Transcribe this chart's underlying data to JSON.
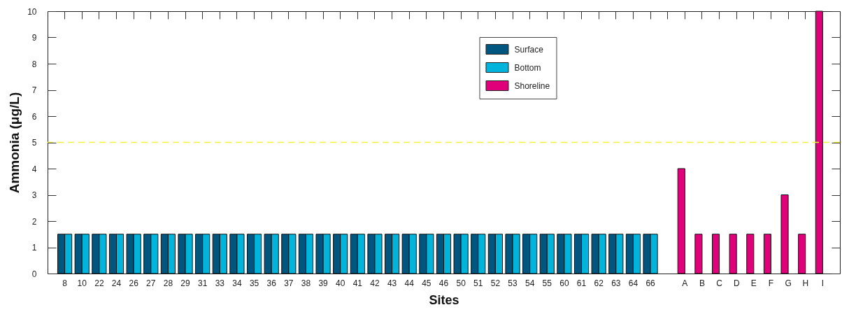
{
  "chart_data": {
    "type": "bar",
    "xlabel": "Sites",
    "ylabel": "Ammonia (μg/L)",
    "categories": [
      "8",
      "10",
      "22",
      "24",
      "26",
      "27",
      "28",
      "29",
      "31",
      "33",
      "34",
      "35",
      "36",
      "37",
      "38",
      "39",
      "40",
      "41",
      "42",
      "43",
      "44",
      "45",
      "46",
      "50",
      "51",
      "52",
      "53",
      "54",
      "55",
      "60",
      "61",
      "62",
      "63",
      "64",
      "66",
      null,
      "A",
      "B",
      "C",
      "D",
      "E",
      "F",
      "G",
      "H",
      "I"
    ],
    "series": [
      {
        "name": "Surface",
        "color": "#00567f",
        "values": [
          1.5,
          1.5,
          1.5,
          1.5,
          1.5,
          1.5,
          1.5,
          1.5,
          1.5,
          1.5,
          1.5,
          1.5,
          1.5,
          1.5,
          1.5,
          1.5,
          1.5,
          1.5,
          1.5,
          1.5,
          1.5,
          1.5,
          1.5,
          1.5,
          1.5,
          1.5,
          1.5,
          1.5,
          1.5,
          1.5,
          1.5,
          1.5,
          1.5,
          1.5,
          1.5,
          null,
          null,
          null,
          null,
          null,
          null,
          null,
          null,
          null,
          null
        ]
      },
      {
        "name": "Bottom",
        "color": "#00b4dc",
        "values": [
          1.5,
          1.5,
          1.5,
          1.5,
          1.5,
          1.5,
          1.5,
          1.5,
          1.5,
          1.5,
          1.5,
          1.5,
          1.5,
          1.5,
          1.5,
          1.5,
          1.5,
          1.5,
          1.5,
          1.5,
          1.5,
          1.5,
          1.5,
          1.5,
          1.5,
          1.5,
          1.5,
          1.5,
          1.5,
          1.5,
          1.5,
          1.5,
          1.5,
          1.5,
          1.5,
          null,
          null,
          null,
          null,
          null,
          null,
          null,
          null,
          null,
          null
        ]
      },
      {
        "name": "Shoreline",
        "color": "#e0007a",
        "values": [
          null,
          null,
          null,
          null,
          null,
          null,
          null,
          null,
          null,
          null,
          null,
          null,
          null,
          null,
          null,
          null,
          null,
          null,
          null,
          null,
          null,
          null,
          null,
          null,
          null,
          null,
          null,
          null,
          null,
          null,
          null,
          null,
          null,
          null,
          null,
          null,
          4,
          1.5,
          1.5,
          1.5,
          1.5,
          1.5,
          3,
          1.5,
          10
        ]
      }
    ],
    "ylim": [
      0,
      10
    ],
    "yticks": [
      0,
      1,
      2,
      3,
      4,
      5,
      6,
      7,
      8,
      9,
      10
    ],
    "ref_lines": [
      {
        "axis": "y",
        "value": 5,
        "color": "#f2f23a",
        "line_style": "dashed"
      }
    ],
    "legend": "top"
  }
}
